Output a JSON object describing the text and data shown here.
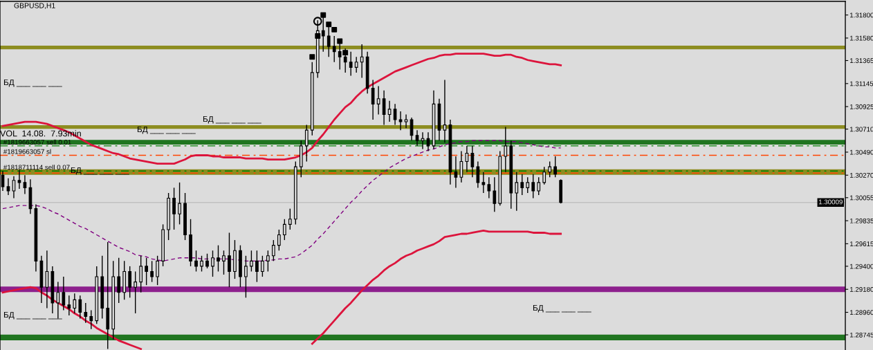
{
  "chart_data": {
    "type": "candlestick",
    "title": "GBPUSD,H1",
    "color": "#000000",
    "categories": [
      null,
      null,
      null,
      null,
      null,
      null,
      null,
      null,
      null,
      null,
      null,
      null,
      null,
      null,
      null,
      null,
      null,
      null,
      null,
      null,
      null,
      null,
      null,
      null,
      null,
      null,
      null,
      null,
      null,
      null,
      null,
      null,
      null,
      null,
      null,
      null,
      null,
      null,
      null,
      null,
      null,
      null,
      null,
      null,
      null,
      null,
      null,
      null,
      null,
      null,
      null,
      null,
      null,
      null,
      null,
      null,
      null,
      null,
      null,
      null,
      null,
      null,
      null,
      null,
      null,
      null,
      null,
      null,
      null,
      null,
      null,
      null,
      null,
      null,
      null,
      null,
      null,
      null,
      null,
      null,
      null,
      null,
      null,
      null,
      null,
      null,
      null,
      null,
      null,
      null,
      null,
      null,
      null,
      null,
      null,
      null,
      null,
      null,
      null,
      null,
      null,
      null
    ],
    "ohlc": [
      [
        1.3027,
        1.3031,
        1.3012,
        1.3016
      ],
      [
        1.3016,
        1.3024,
        1.3008,
        1.3012
      ],
      [
        1.3012,
        1.3026,
        1.3005,
        1.3022
      ],
      [
        1.3022,
        1.3032,
        1.3014,
        1.302
      ],
      [
        1.302,
        1.3027,
        1.3009,
        1.3015
      ],
      [
        1.3015,
        1.3023,
        1.299,
        1.2995
      ],
      [
        1.2995,
        1.2999,
        1.2935,
        1.2945
      ],
      [
        1.2945,
        1.295,
        1.2905,
        1.292
      ],
      [
        1.292,
        1.2955,
        1.29,
        1.2935
      ],
      [
        1.2935,
        1.294,
        1.2895,
        1.2905
      ],
      [
        1.2905,
        1.2925,
        1.289,
        1.2915
      ],
      [
        1.2915,
        1.293,
        1.2898,
        1.2903
      ],
      [
        1.2903,
        1.2912,
        1.2893,
        1.29
      ],
      [
        1.29,
        1.2914,
        1.2895,
        1.2908
      ],
      [
        1.2908,
        1.2912,
        1.289,
        1.2896
      ],
      [
        1.2896,
        1.2905,
        1.2886,
        1.2892
      ],
      [
        1.2892,
        1.2898,
        1.288,
        1.2888
      ],
      [
        1.2888,
        1.294,
        1.2885,
        1.293
      ],
      [
        1.293,
        1.295,
        1.289,
        1.29
      ],
      [
        1.29,
        1.2963,
        1.2861,
        1.288
      ],
      [
        1.288,
        1.2945,
        1.287,
        1.293
      ],
      [
        1.293,
        1.2948,
        1.2905,
        1.2915
      ],
      [
        1.2915,
        1.2945,
        1.2908,
        1.2935
      ],
      [
        1.2935,
        1.294,
        1.291,
        1.292
      ],
      [
        1.292,
        1.2935,
        1.2895,
        1.2925
      ],
      [
        1.2925,
        1.295,
        1.2915,
        1.294
      ],
      [
        1.294,
        1.2948,
        1.2922,
        1.2935
      ],
      [
        1.2935,
        1.2945,
        1.2925,
        1.293
      ],
      [
        1.293,
        1.295,
        1.2922,
        1.2945
      ],
      [
        1.2945,
        1.298,
        1.294,
        1.2975
      ],
      [
        1.2975,
        1.301,
        1.2965,
        1.3005
      ],
      [
        1.3005,
        1.3015,
        1.2975,
        1.299
      ],
      [
        1.299,
        1.302,
        1.298,
        1.3
      ],
      [
        1.3,
        1.301,
        1.2965,
        1.297
      ],
      [
        1.297,
        1.2985,
        1.294,
        1.2945
      ],
      [
        1.2945,
        1.2955,
        1.2935,
        1.294
      ],
      [
        1.294,
        1.295,
        1.2935,
        1.2945
      ],
      [
        1.2945,
        1.2952,
        1.2938,
        1.294
      ],
      [
        1.294,
        1.2955,
        1.293,
        1.2948
      ],
      [
        1.2948,
        1.296,
        1.2935,
        1.2945
      ],
      [
        1.2945,
        1.2955,
        1.2932,
        1.295
      ],
      [
        1.295,
        1.2972,
        1.292,
        1.2935
      ],
      [
        1.2935,
        1.2965,
        1.2928,
        1.2955
      ],
      [
        1.2955,
        1.296,
        1.292,
        1.293
      ],
      [
        1.293,
        1.295,
        1.291,
        1.294
      ],
      [
        1.294,
        1.2955,
        1.2935,
        1.2945
      ],
      [
        1.2945,
        1.2955,
        1.2925,
        1.2935
      ],
      [
        1.2935,
        1.295,
        1.293,
        1.2945
      ],
      [
        1.2945,
        1.2955,
        1.2935,
        1.295
      ],
      [
        1.295,
        1.2965,
        1.2945,
        1.296
      ],
      [
        1.296,
        1.2975,
        1.2955,
        1.297
      ],
      [
        1.297,
        1.2985,
        1.2965,
        1.298
      ],
      [
        1.298,
        1.2995,
        1.2975,
        1.2985
      ],
      [
        1.2985,
        1.304,
        1.298,
        1.3035
      ],
      [
        1.3035,
        1.306,
        1.3025,
        1.3055
      ],
      [
        1.3055,
        1.3075,
        1.304,
        1.307
      ],
      [
        1.307,
        1.3135,
        1.3065,
        1.3125
      ],
      [
        1.3125,
        1.3175,
        1.312,
        1.3165
      ],
      [
        1.3165,
        1.3182,
        1.3145,
        1.316
      ],
      [
        1.316,
        1.3172,
        1.314,
        1.315
      ],
      [
        1.315,
        1.316,
        1.3135,
        1.3145
      ],
      [
        1.3145,
        1.3155,
        1.3128,
        1.314
      ],
      [
        1.314,
        1.3148,
        1.3125,
        1.3135
      ],
      [
        1.3135,
        1.3145,
        1.3122,
        1.313
      ],
      [
        1.313,
        1.314,
        1.3125,
        1.3135
      ],
      [
        1.3135,
        1.3152,
        1.312,
        1.314
      ],
      [
        1.314,
        1.3145,
        1.3105,
        1.311
      ],
      [
        1.311,
        1.3118,
        1.308,
        1.3095
      ],
      [
        1.3095,
        1.3112,
        1.3085,
        1.31
      ],
      [
        1.31,
        1.3108,
        1.3075,
        1.3085
      ],
      [
        1.3085,
        1.3098,
        1.3078,
        1.309
      ],
      [
        1.309,
        1.3095,
        1.3075,
        1.308
      ],
      [
        1.308,
        1.3088,
        1.307,
        1.3078
      ],
      [
        1.3078,
        1.3085,
        1.3072,
        1.308
      ],
      [
        1.308,
        1.3082,
        1.306,
        1.3065
      ],
      [
        1.3065,
        1.307,
        1.3055,
        1.306
      ],
      [
        1.306,
        1.3068,
        1.3052,
        1.3062
      ],
      [
        1.3062,
        1.3068,
        1.305,
        1.3055
      ],
      [
        1.3055,
        1.3108,
        1.3052,
        1.3095
      ],
      [
        1.3095,
        1.31,
        1.306,
        1.307
      ],
      [
        1.307,
        1.3118,
        1.3058,
        1.3075
      ],
      [
        1.3075,
        1.308,
        1.3018,
        1.303
      ],
      [
        1.303,
        1.3045,
        1.3015,
        1.3025
      ],
      [
        1.3025,
        1.305,
        1.302,
        1.304
      ],
      [
        1.304,
        1.3055,
        1.303,
        1.3048
      ],
      [
        1.3048,
        1.3055,
        1.3025,
        1.3035
      ],
      [
        1.3035,
        1.304,
        1.3015,
        1.302
      ],
      [
        1.302,
        1.303,
        1.301,
        1.3018
      ],
      [
        1.3018,
        1.3025,
        1.3005,
        1.3012
      ],
      [
        1.3012,
        1.3025,
        1.2992,
        1.3
      ],
      [
        1.3,
        1.305,
        1.2998,
        1.3045
      ],
      [
        1.3045,
        1.3073,
        1.303,
        1.3055
      ],
      [
        1.3055,
        1.306,
        1.2995,
        1.301
      ],
      [
        1.301,
        1.303,
        1.2993,
        1.302
      ],
      [
        1.302,
        1.3028,
        1.3008,
        1.3015
      ],
      [
        1.3015,
        1.3025,
        1.301,
        1.302
      ],
      [
        1.302,
        1.3028,
        1.3005,
        1.3012
      ],
      [
        1.3012,
        1.3025,
        1.3008,
        1.302
      ],
      [
        1.302,
        1.3035,
        1.3018,
        1.303
      ],
      [
        1.303,
        1.304,
        1.3025,
        1.3035
      ],
      [
        1.3035,
        1.3045,
        1.3025,
        1.3028
      ],
      [
        1.3022,
        1.3023,
        1.3,
        1.3001
      ]
    ],
    "series": [
      {
        "type": "line",
        "color": "#dc143c",
        "line_style": "solid",
        "values": [
          1.3074,
          1.3075,
          1.3076,
          1.3077,
          1.3078,
          1.3078,
          1.3078,
          1.3077,
          1.3076,
          1.3074,
          1.3072,
          1.307,
          1.3068,
          1.3065,
          1.3062,
          1.3059,
          1.3056,
          1.3054,
          1.3052,
          1.305,
          1.3048,
          1.3047,
          1.3045,
          1.3043,
          1.3042,
          1.3041,
          1.304,
          1.3039,
          1.3038,
          1.3038,
          1.3038,
          1.3038,
          1.304,
          1.3042,
          1.3045,
          1.3046,
          1.3046,
          1.3046,
          1.3045,
          1.3045,
          1.3044,
          1.3044,
          1.3044,
          1.3044,
          1.3043,
          1.3043,
          1.3043,
          1.3043,
          1.3042,
          1.3042,
          1.3042,
          1.3042,
          1.3043,
          1.3044,
          1.3046,
          1.3049,
          1.3053,
          1.306,
          1.3066,
          1.3073,
          1.308,
          1.3086,
          1.3092,
          1.3096,
          1.3102,
          1.3107,
          1.3111,
          1.3114,
          1.3117,
          1.312,
          1.3123,
          1.3126,
          1.3128,
          1.313,
          1.3132,
          1.3134,
          1.3136,
          1.3138,
          1.3139,
          1.3141,
          1.3142,
          1.3142,
          1.3143,
          1.3143,
          1.3143,
          1.3143,
          1.3143,
          1.3143,
          1.3142,
          1.3141,
          1.3141,
          1.3142,
          1.3142,
          1.314,
          1.3139,
          1.3137,
          1.3136,
          1.3135,
          1.3134,
          1.3133,
          1.3133,
          1.3132
        ]
      },
      {
        "type": "line",
        "color": "#dc143c",
        "line_style": "solid",
        "values": [
          1.2915,
          1.2916,
          1.2917,
          1.2918,
          1.2919,
          1.292,
          1.2919,
          1.2915,
          1.2912,
          1.2908,
          1.2905,
          1.2902,
          1.2899,
          1.2895,
          1.2892,
          1.2888,
          1.2885,
          1.2881,
          1.2878,
          1.2875,
          1.2872,
          1.2869,
          1.2867,
          1.2865,
          1.2863,
          1.2861,
          null,
          null,
          null,
          null,
          null,
          null,
          null,
          null,
          null,
          null,
          null,
          null,
          null,
          null,
          null,
          null,
          null,
          null,
          null,
          null,
          null,
          null,
          null,
          null,
          null,
          null,
          null,
          null,
          null,
          null,
          1.2866,
          1.2871,
          1.2876,
          1.2882,
          1.2888,
          1.2894,
          1.29,
          1.2905,
          1.2911,
          1.2917,
          1.2922,
          1.2927,
          1.2931,
          1.2936,
          1.294,
          1.2943,
          1.2947,
          1.295,
          1.2952,
          1.2955,
          1.2957,
          1.2959,
          1.2961,
          1.2964,
          1.2968,
          1.2969,
          1.297,
          1.2971,
          1.2971,
          1.2972,
          1.2973,
          1.2974,
          1.2973,
          1.2973,
          1.2973,
          1.2973,
          1.2973,
          1.2973,
          1.2973,
          1.2973,
          1.2972,
          1.2972,
          1.2972,
          1.2971,
          1.2971,
          1.2971
        ]
      },
      {
        "type": "line",
        "color": "#800080",
        "line_style": "dashed",
        "values": [
          1.2995,
          1.2996,
          1.2997,
          1.2998,
          1.2998,
          1.2998,
          1.2998,
          1.2997,
          1.2995,
          1.2992,
          1.299,
          1.2987,
          1.2984,
          1.2981,
          1.2978,
          1.2976,
          1.2973,
          1.297,
          1.2967,
          1.2964,
          1.2961,
          1.2958,
          1.2956,
          1.2954,
          1.2951,
          1.295,
          1.2949,
          1.2947,
          1.2946,
          1.2945,
          1.2946,
          1.2947,
          1.2948,
          1.2948,
          1.2948,
          1.2948,
          1.2947,
          1.2947,
          1.2947,
          1.2947,
          1.2947,
          1.2947,
          1.2946,
          1.2946,
          1.2945,
          1.2945,
          1.2945,
          1.2945,
          1.2946,
          1.2946,
          1.2947,
          1.2947,
          1.2948,
          1.2949,
          1.2952,
          1.2956,
          1.296,
          1.2966,
          1.2971,
          1.2977,
          1.2983,
          1.2989,
          1.2995,
          1.3001,
          1.3006,
          1.3012,
          1.3017,
          1.3022,
          1.3026,
          1.303,
          1.3034,
          1.3037,
          1.304,
          1.3043,
          1.3045,
          1.3047,
          1.3049,
          1.3051,
          1.3052,
          1.3054,
          1.3056,
          1.3057,
          1.3058,
          1.3059,
          1.3059,
          1.306,
          1.306,
          1.306,
          1.306,
          1.306,
          1.306,
          1.3059,
          1.3059,
          1.3059,
          1.3058,
          1.3057,
          1.3056,
          1.3055,
          1.3054,
          1.3054,
          1.3053,
          1.3053
        ]
      },
      {
        "type": "scatter",
        "color": "#000000",
        "marker": "square",
        "values": [
          null,
          null,
          null,
          null,
          null,
          null,
          null,
          null,
          null,
          null,
          null,
          null,
          null,
          null,
          null,
          null,
          null,
          null,
          null,
          null,
          null,
          null,
          null,
          null,
          null,
          null,
          null,
          null,
          null,
          null,
          null,
          null,
          null,
          null,
          null,
          null,
          null,
          null,
          null,
          null,
          null,
          null,
          null,
          null,
          null,
          null,
          null,
          null,
          null,
          null,
          null,
          null,
          null,
          null,
          null,
          null,
          1.314,
          1.316,
          1.318,
          1.3171,
          1.3166,
          1.3155,
          1.3144,
          null,
          null,
          null,
          null,
          null,
          null,
          null,
          null,
          null,
          null,
          null,
          null,
          null,
          null,
          null,
          null,
          null,
          null,
          null,
          null,
          null,
          null,
          null,
          null,
          null,
          null,
          null,
          null,
          null,
          null,
          null,
          null,
          null,
          null,
          null,
          null,
          null,
          null,
          null
        ]
      },
      {
        "type": "scatter",
        "color": "#000000",
        "marker": "circle",
        "values": [
          null,
          null,
          null,
          null,
          null,
          null,
          null,
          null,
          null,
          null,
          null,
          null,
          null,
          null,
          null,
          null,
          null,
          null,
          null,
          null,
          null,
          null,
          null,
          null,
          null,
          null,
          null,
          null,
          null,
          null,
          null,
          null,
          null,
          null,
          null,
          null,
          null,
          null,
          null,
          null,
          null,
          null,
          null,
          null,
          null,
          null,
          null,
          null,
          null,
          null,
          null,
          null,
          null,
          null,
          null,
          null,
          null,
          1.3174,
          null,
          null,
          null,
          null,
          null,
          null,
          null,
          null,
          null,
          null,
          null,
          null,
          null,
          null,
          null,
          null,
          null,
          null,
          null,
          null,
          null,
          null,
          null,
          null,
          null,
          null,
          null,
          null,
          null,
          null,
          null,
          null,
          null,
          null,
          null,
          null,
          null,
          null,
          null,
          null,
          null,
          null,
          null,
          null
        ]
      }
    ],
    "ylim": [
      1.286,
      1.3193
    ],
    "yticks": [
      {
        "value": 1.318,
        "label": "1.31800"
      },
      {
        "value": 1.3158,
        "label": "1.31580"
      },
      {
        "value": 1.31365,
        "label": "1.31365"
      },
      {
        "value": 1.31145,
        "label": "1.31145"
      },
      {
        "value": 1.30925,
        "label": "1.30925"
      },
      {
        "value": 1.3071,
        "label": "1.30710"
      },
      {
        "value": 1.3049,
        "label": "1.30490"
      },
      {
        "value": 1.3027,
        "label": "1.30270"
      },
      {
        "value": 1.30055,
        "label": "1.30055"
      },
      {
        "value": 1.29835,
        "label": "1.29835"
      },
      {
        "value": 1.29615,
        "label": "1.29615"
      },
      {
        "value": 1.294,
        "label": "1.29400"
      },
      {
        "value": 1.2918,
        "label": "1.29180"
      },
      {
        "value": 1.2896,
        "label": "1.28960"
      },
      {
        "value": 1.28745,
        "label": "1.28745"
      }
    ],
    "tick_labels": "y",
    "grid": false,
    "ref_lines": [
      {
        "axis": "y",
        "value": 1.3055,
        "label": "#1819663057 sell 0.01",
        "color": "#008000",
        "line_style": "dashdot"
      },
      {
        "axis": "y",
        "value": 1.3046,
        "label": "#1819663057 sl",
        "color": "#ff4500",
        "line_style": "dashdot"
      },
      {
        "axis": "y",
        "value": 1.3031,
        "label": "#1818711114 sell 0.07",
        "color": "#008000",
        "line_style": "dashdot"
      },
      {
        "axis": "y",
        "value": 1.3029,
        "label": null,
        "color": "#ff4500",
        "line_style": "dashdot"
      },
      {
        "axis": "y",
        "value": 1.30009,
        "label": "1.30009",
        "color": "#c0c0c0",
        "line_style": "solid"
      }
    ],
    "bands": [
      {
        "axis": "y",
        "from": 1.3148,
        "to": 1.315,
        "color": "#808000"
      },
      {
        "axis": "y",
        "from": 1.3072,
        "to": 1.3074,
        "color": "#808000"
      },
      {
        "axis": "y",
        "from": 1.3057,
        "to": 1.306,
        "color": "#006400"
      },
      {
        "axis": "y",
        "from": 1.3028,
        "to": 1.3032,
        "color": "#808000"
      },
      {
        "axis": "y",
        "from": 1.2916,
        "to": 1.292,
        "color": "#800080"
      },
      {
        "axis": "y",
        "from": 1.287,
        "to": 1.2874,
        "color": "#006400"
      }
    ],
    "annotations": [
      "VOL  14.08.  7.93min",
      "БД ___ ___ ___",
      "БД ___ ___ ___",
      "БД ___ ___ ___",
      "БД ___ ___ ___",
      "БД ___ ___ ___",
      "БД ___ ___ ___"
    ]
  }
}
